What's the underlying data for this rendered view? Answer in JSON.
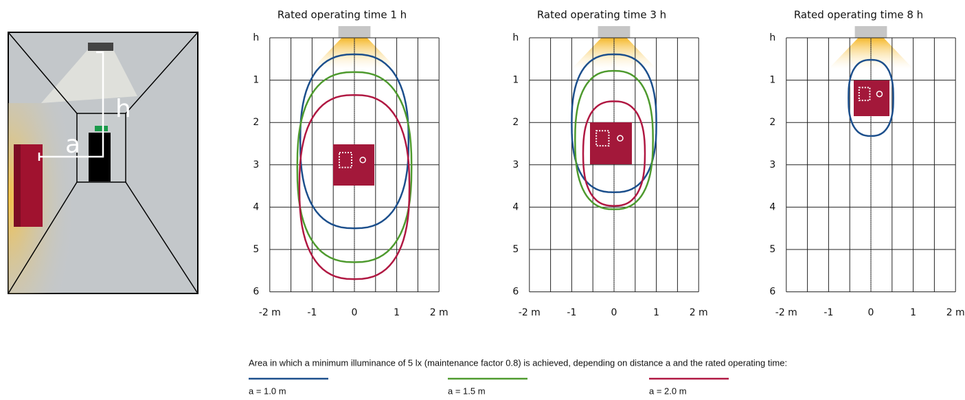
{
  "illustration": {
    "labels": {
      "h": "h",
      "a": "a"
    }
  },
  "panels": [
    {
      "title": "Rated operating time 1 h",
      "yticks": [
        "h",
        "1",
        "2",
        "3",
        "4",
        "5",
        "6"
      ],
      "xticks": [
        "-2 m",
        "-1",
        "0",
        "1",
        "2 m"
      ],
      "curves": [
        {
          "top": 0.39,
          "bottom": 4.5,
          "half_width": 1.28
        },
        {
          "top": 0.81,
          "bottom": 5.3,
          "half_width": 1.35
        },
        {
          "top": 1.35,
          "bottom": 5.7,
          "half_width": 1.3
        }
      ]
    },
    {
      "title": "Rated operating time 3 h",
      "yticks": [
        "h",
        "1",
        "2",
        "3",
        "4",
        "5",
        "6"
      ],
      "xticks": [
        "-2 m",
        "-1",
        "0",
        "1",
        "2 m"
      ],
      "curves": [
        {
          "top": 0.39,
          "bottom": 3.65,
          "half_width": 1.0
        },
        {
          "top": 0.78,
          "bottom": 4.05,
          "half_width": 0.92
        },
        {
          "top": 1.5,
          "bottom": 3.97,
          "half_width": 0.73
        }
      ]
    },
    {
      "title": "Rated operating time 8 h",
      "yticks": [
        "h",
        "1",
        "2",
        "3",
        "4",
        "5",
        "6"
      ],
      "xticks": [
        "-2 m",
        "-1",
        "0",
        "1",
        "2 m"
      ],
      "curves": [
        {
          "top": 0.52,
          "bottom": 2.32,
          "half_width": 0.53
        }
      ]
    }
  ],
  "legend": {
    "caption": "Area in which a minimum illuminance of 5 lx (maintenance factor 0.8) is achieved, depending on distance a and the rated operating time:",
    "items": [
      {
        "label": "a = 1.0 m",
        "color": "#1c4f8c"
      },
      {
        "label": "a = 1.5 m",
        "color": "#4e9a2e"
      },
      {
        "label": "a = 2.0 m",
        "color": "#b01842"
      }
    ]
  }
}
